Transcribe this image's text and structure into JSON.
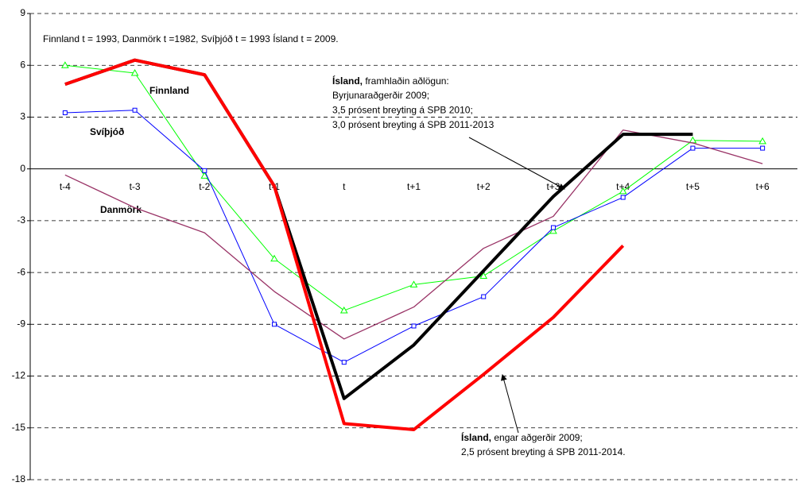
{
  "chart_data": {
    "type": "line",
    "note": "Finnland t = 1993, Danmörk t =1982, Svíþjóð t = 1993 Ísland t = 2009.",
    "categories": [
      "t-4",
      "t-3",
      "t-2",
      "t-1",
      "t",
      "t+1",
      "t+2",
      "t+3",
      "t+4",
      "t+5",
      "t+6"
    ],
    "series": [
      {
        "name": "Finnland",
        "color": "#00ff00",
        "marker": "triangle",
        "width": 1,
        "values": [
          6.0,
          5.55,
          -0.4,
          -5.2,
          -8.2,
          -6.7,
          -6.2,
          -3.6,
          -1.3,
          1.65,
          1.6
        ]
      },
      {
        "name": "Svíþjóð",
        "color": "#0000ff",
        "marker": "square",
        "width": 1,
        "values": [
          3.25,
          3.4,
          -0.1,
          -9.0,
          -11.2,
          -9.1,
          -7.4,
          -3.4,
          -1.65,
          1.2,
          1.2
        ]
      },
      {
        "name": "Danmörk",
        "color": "#993366",
        "width": 1.3,
        "values": [
          -0.35,
          -2.25,
          -3.7,
          -7.1,
          -9.85,
          -8.0,
          -4.6,
          -2.75,
          2.25,
          1.5,
          0.3
        ]
      },
      {
        "color": "#000000",
        "width": 4,
        "values": [
          4.9,
          6.3,
          5.45,
          -1.0,
          -13.3,
          -10.2,
          -5.9,
          -1.6,
          2.0,
          2.0,
          null
        ]
      },
      {
        "color": "#ff0000",
        "width": 4,
        "values": [
          4.9,
          6.3,
          5.45,
          -1.0,
          -14.75,
          -15.1,
          -11.9,
          -8.6,
          -4.45,
          null,
          null
        ]
      }
    ],
    "annotations": [
      {
        "bold": "Ísland,",
        "text": " framhlaðin aðlögun:",
        "lines": [
          "Byrjunaraðgerðir 2009;",
          "3,5 prósent breyting á  SPB  2010;",
          "3,0 prósent breyting á  SPB 2011-2013"
        ]
      },
      {
        "bold": "Ísland,",
        "text": " engar aðgerðir 2009;",
        "lines": [
          "2,5 prósent breyting á  SPB 2011-2014."
        ]
      }
    ],
    "ylim": [
      -18,
      9
    ],
    "yticks": [
      -18,
      -15,
      -12,
      -9,
      -6,
      -3,
      0,
      3,
      6,
      9
    ],
    "grid": true
  }
}
